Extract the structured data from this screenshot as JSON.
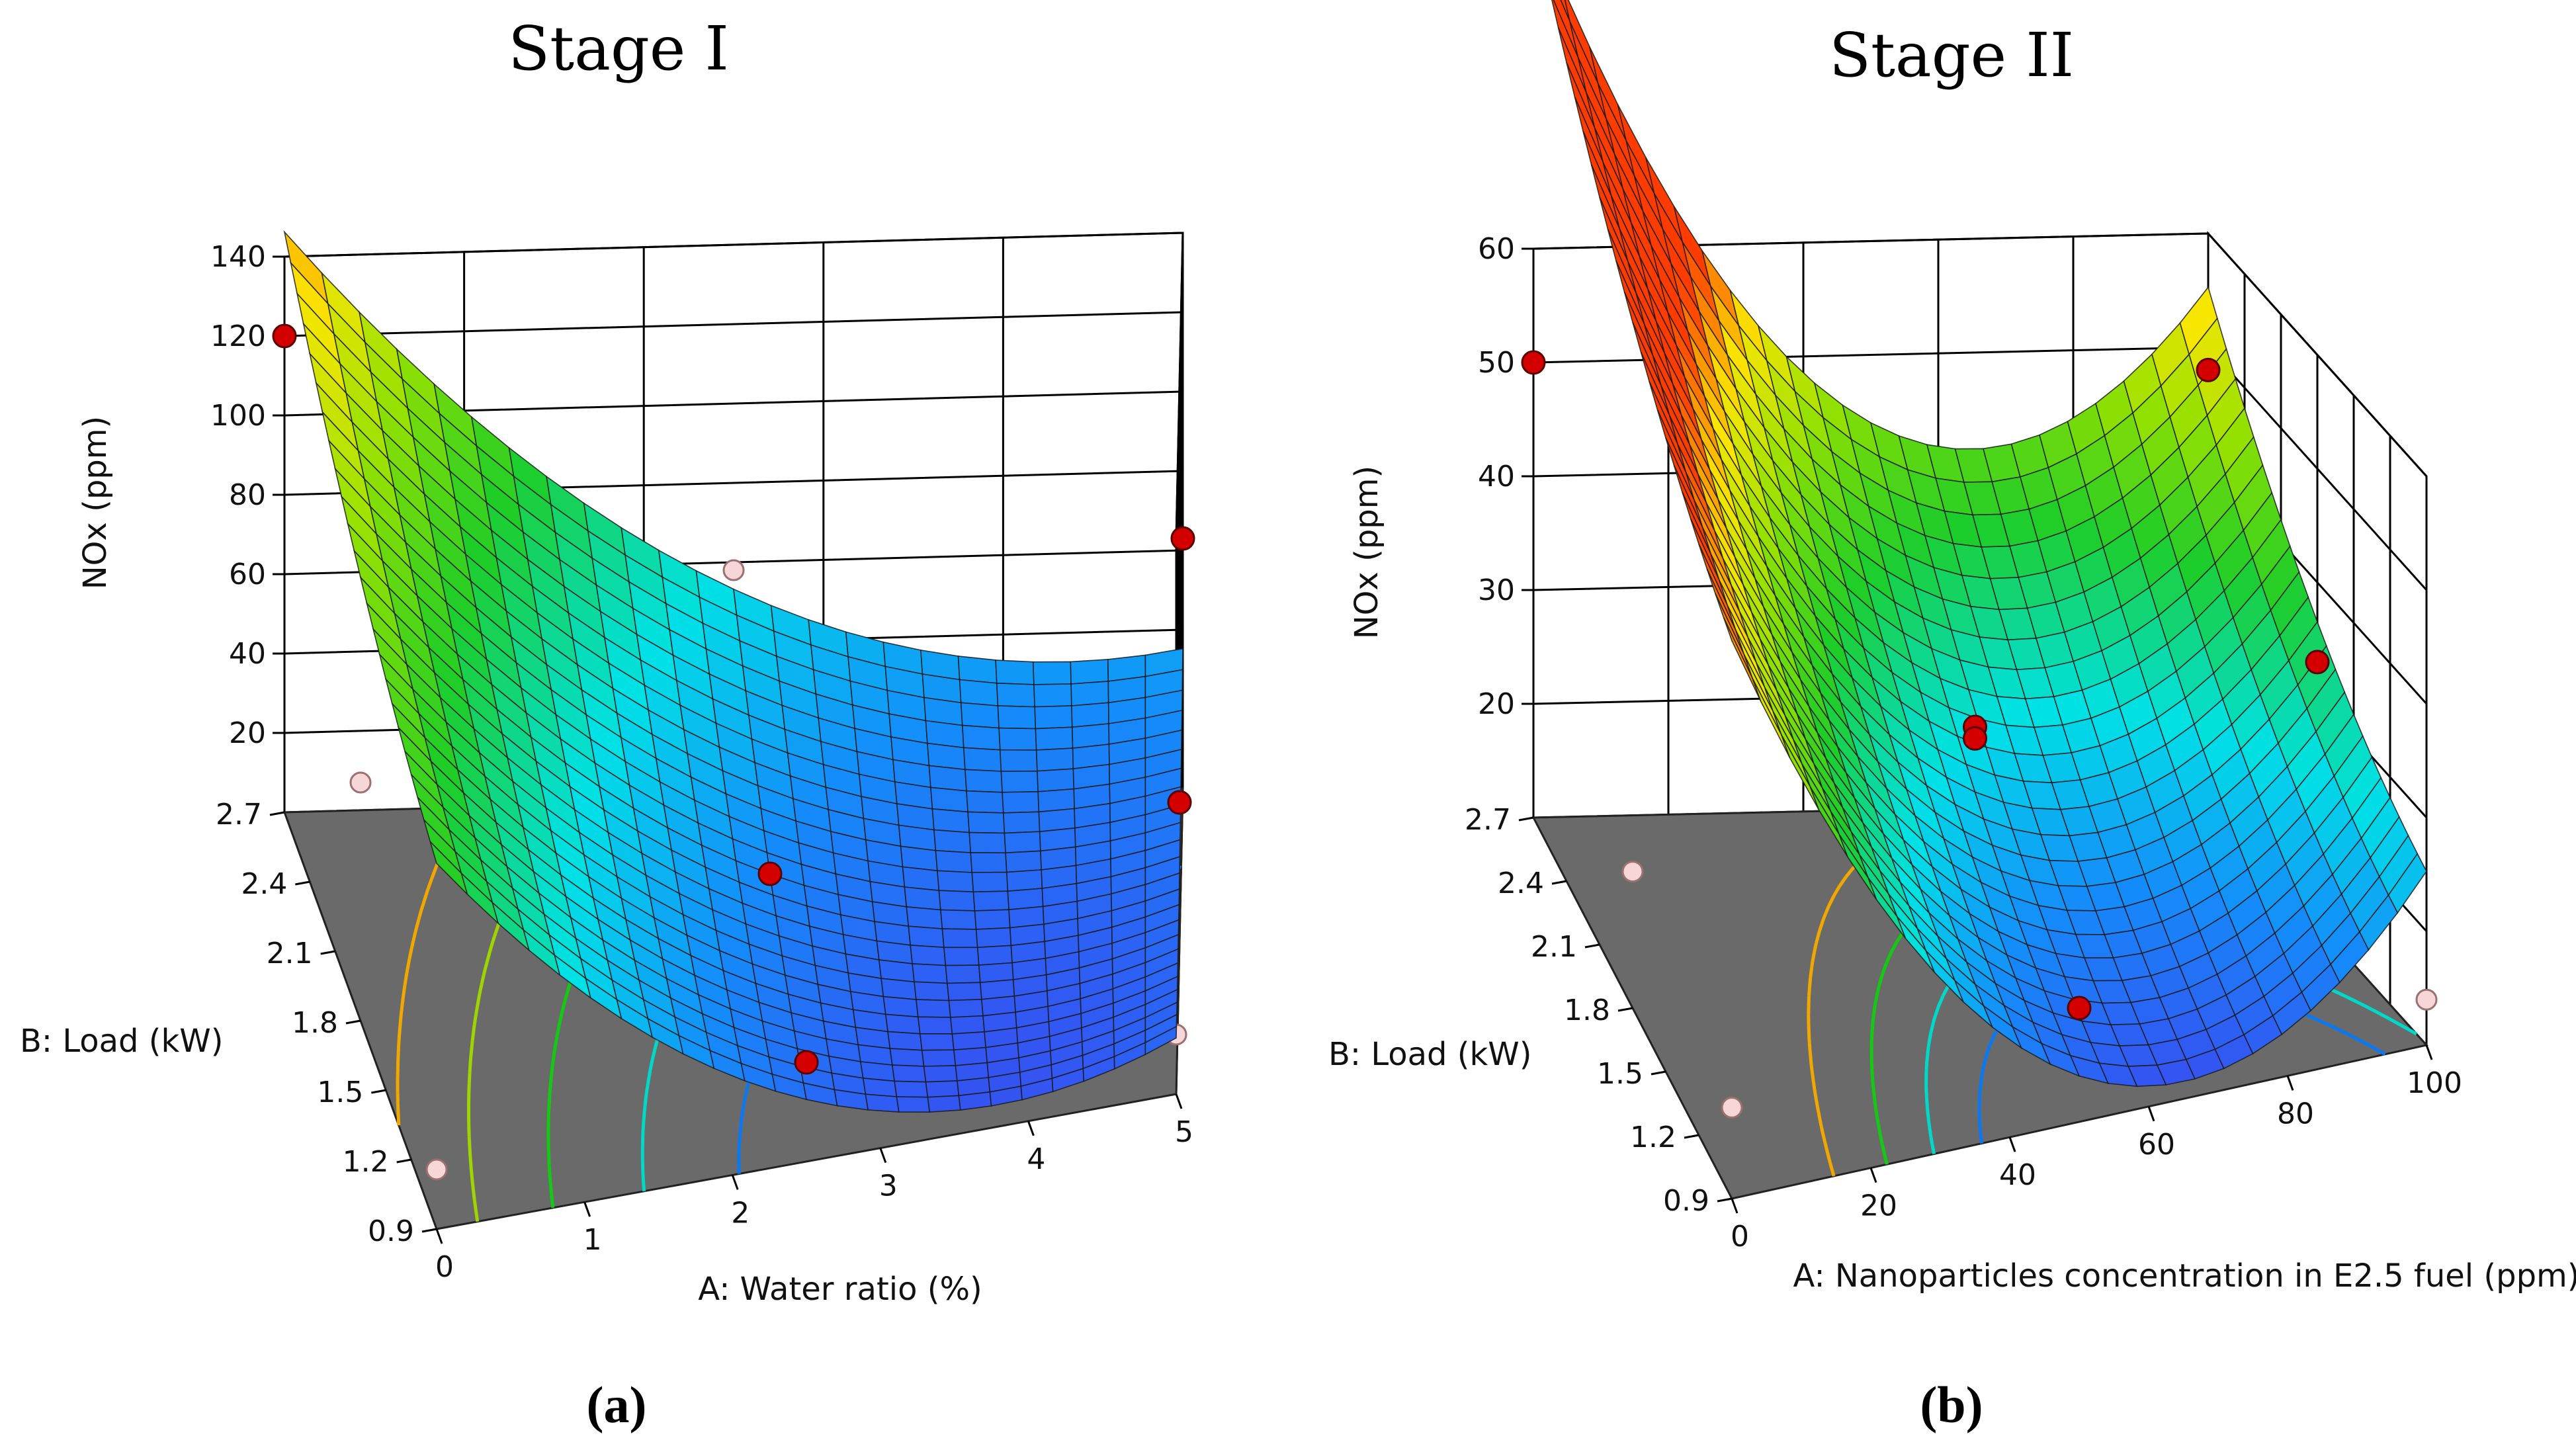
{
  "chart_data": [
    {
      "type": "surface3d",
      "id": "a",
      "title": "Stage I",
      "caption": "(a)",
      "xlabel": "A: Water ratio (%)",
      "ylabel": "B: Load (kW)",
      "zlabel": "NOx (ppm)",
      "x_ticks": [
        0,
        1,
        2,
        3,
        4,
        5
      ],
      "y_ticks": [
        "0.9",
        "1.2",
        "1.5",
        "1.8",
        "2.1",
        "2.4",
        "2.7"
      ],
      "z_ticks": [
        20,
        40,
        60,
        80,
        100,
        120,
        140
      ],
      "xlim": [
        0,
        5
      ],
      "ylim": [
        0.9,
        2.7
      ],
      "zlim": [
        0,
        140
      ],
      "surface_model": {
        "x0": 3.8,
        "a": 6.0,
        "b": 30.0,
        "c": -13.0,
        "d": -6.6,
        "e": 3.5
      },
      "design_points": [
        {
          "x": 5,
          "y": 2.7,
          "z": 63,
          "above_surface": true
        },
        {
          "x": 5,
          "y": 0.9,
          "z": 15,
          "above_surface": false
        },
        {
          "x": 2.5,
          "y": 1.8,
          "z": 27,
          "above_surface": true
        },
        {
          "x": 0,
          "y": 2.7,
          "z": 120,
          "above_surface": true
        },
        {
          "x": 0,
          "y": 1.8,
          "z": 60,
          "above_surface": false
        },
        {
          "x": 2.5,
          "y": 2.7,
          "z": 58,
          "above_surface": false
        },
        {
          "x": 0,
          "y": 0.9,
          "z": 15,
          "above_surface": false
        },
        {
          "x": 2.5,
          "y": 0.9,
          "z": 25,
          "above_surface": true
        },
        {
          "x": 5,
          "y": 1.8,
          "z": 35,
          "above_surface": true
        }
      ],
      "contours": [
        {
          "level": 100,
          "color": "#f0a800"
        },
        {
          "level": 80,
          "color": "#9fd400"
        },
        {
          "level": 60,
          "color": "#14c814"
        },
        {
          "level": 40,
          "color": "#00d8c8"
        },
        {
          "level": 24,
          "color": "#0a78f0"
        }
      ]
    },
    {
      "type": "surface3d",
      "id": "b",
      "title": "Stage II",
      "caption": "(b)",
      "xlabel": "A: Nanoparticles concentration in E2.5 fuel (ppm)",
      "ylabel": "B: Load (kW)",
      "zlabel": "NOx (ppm)",
      "x_ticks": [
        0,
        20,
        40,
        60,
        80,
        100
      ],
      "y_ticks": [
        "0.9",
        "1.2",
        "1.5",
        "1.8",
        "2.1",
        "2.4",
        "2.7"
      ],
      "z_ticks": [
        20,
        30,
        40,
        50,
        60
      ],
      "xlim": [
        0,
        100
      ],
      "ylim": [
        0.9,
        2.7
      ],
      "zlim": [
        10,
        60
      ],
      "surface_model": {
        "x0": 65,
        "a": 4.5,
        "b": 15.0,
        "c": -3.0,
        "d": 0,
        "e": 1.5
      },
      "design_points": [
        {
          "x": 0,
          "y": 2.7,
          "z": 50,
          "above_surface": true
        },
        {
          "x": 100,
          "y": 2.7,
          "z": 48,
          "above_surface": true
        },
        {
          "x": 50,
          "y": 1.8,
          "z": 31,
          "above_surface": true
        },
        {
          "x": 50,
          "y": 1.8,
          "z": 30,
          "above_surface": true
        },
        {
          "x": 100,
          "y": 1.8,
          "z": 33,
          "above_surface": true
        },
        {
          "x": 0,
          "y": 1.8,
          "z": 22,
          "above_surface": false
        },
        {
          "x": 50,
          "y": 0.9,
          "z": 20,
          "above_surface": true
        },
        {
          "x": 0,
          "y": 0.9,
          "z": 18,
          "above_surface": false
        },
        {
          "x": 100,
          "y": 0.9,
          "z": 14,
          "above_surface": false
        }
      ],
      "contours": [
        {
          "level": 40,
          "color": "#f0a800"
        },
        {
          "level": 32,
          "color": "#14c814"
        },
        {
          "level": 26,
          "color": "#00d8c8"
        },
        {
          "level": 21,
          "color": "#0a78f0"
        }
      ]
    }
  ]
}
